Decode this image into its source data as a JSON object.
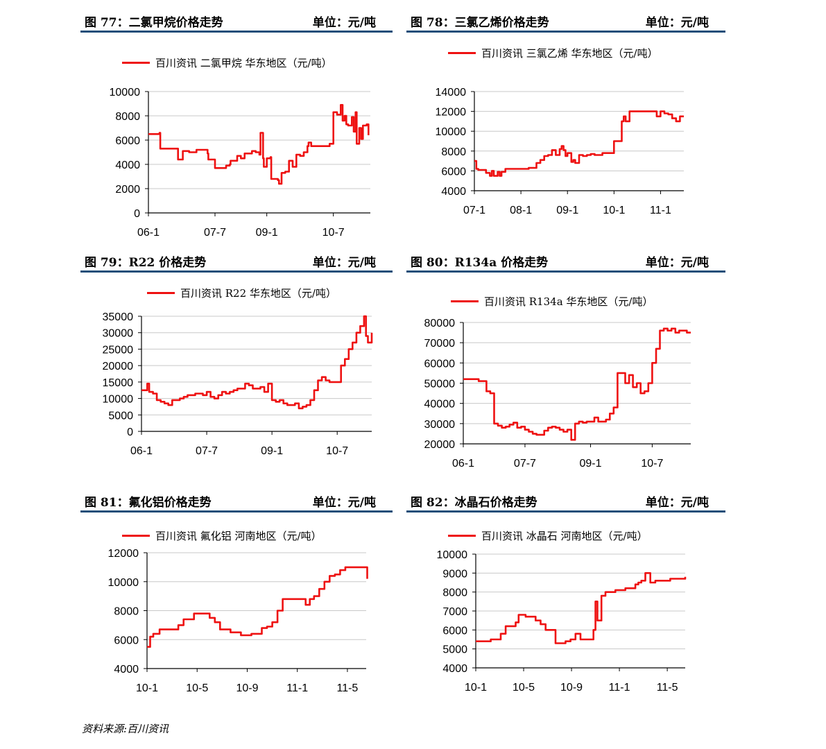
{
  "source_note": "资料来源:百川资讯",
  "chart_data": [
    {
      "id": "fig77",
      "figure_title": "图 77：二氯甲烷价格走势",
      "unit": "单位：元/吨",
      "type": "line",
      "legend": "百川资讯 二氯甲烷 华东地区（元/吨）",
      "color": "#ee1111",
      "ylim": [
        0,
        10000
      ],
      "yticks": [
        0,
        2000,
        4000,
        6000,
        8000,
        10000
      ],
      "xlim": [
        0,
        60
      ],
      "xticks": [
        {
          "x": 0,
          "label": "06-1"
        },
        {
          "x": 18,
          "label": "07-7"
        },
        {
          "x": 32,
          "label": "09-1"
        },
        {
          "x": 50,
          "label": "10-7"
        }
      ],
      "series": [
        {
          "x": [
            0,
            1,
            3,
            3.2,
            5,
            8,
            9,
            9.3,
            11,
            13,
            15,
            16,
            16.2,
            18,
            20,
            21,
            22,
            22.2,
            24,
            25,
            26,
            28,
            29,
            30,
            30.3,
            31,
            31.2,
            32,
            33,
            33.2,
            35,
            35.3,
            36,
            37,
            38,
            39,
            40,
            41,
            42,
            43,
            43.3,
            44,
            45,
            46,
            48,
            49,
            50,
            51,
            52,
            52.5,
            53,
            53.5,
            54,
            55,
            55.5,
            56,
            56.3,
            57,
            57.5,
            58,
            59,
            59.5
          ],
          "y": [
            6500,
            6500,
            6600,
            5300,
            5300,
            4400,
            4400,
            5100,
            5000,
            5200,
            5200,
            4900,
            4400,
            3700,
            3700,
            3900,
            4000,
            4300,
            4700,
            4500,
            4900,
            5100,
            5000,
            4800,
            6600,
            4500,
            3800,
            4500,
            4600,
            2800,
            2700,
            2400,
            3300,
            3400,
            4300,
            3800,
            4800,
            4700,
            5000,
            5500,
            5800,
            5500,
            5500,
            5500,
            5500,
            5700,
            8300,
            8100,
            8900,
            7600,
            8000,
            7300,
            7200,
            7900,
            6700,
            8300,
            5700,
            7000,
            6100,
            7200,
            7300,
            6400
          ]
        }
      ]
    },
    {
      "id": "fig78",
      "figure_title": "图 78：三氯乙烯价格走势",
      "unit": "单位：元/吨",
      "type": "line",
      "legend": "百川资讯 三氯乙烯 华东地区（元/吨）",
      "color": "#ee1111",
      "ylim": [
        4000,
        14000
      ],
      "yticks": [
        4000,
        6000,
        8000,
        10000,
        12000,
        14000
      ],
      "xlim": [
        0,
        54
      ],
      "xticks": [
        {
          "x": 0,
          "label": "07-1"
        },
        {
          "x": 12,
          "label": "08-1"
        },
        {
          "x": 24,
          "label": "09-1"
        },
        {
          "x": 36,
          "label": "10-1"
        },
        {
          "x": 48,
          "label": "11-1"
        }
      ],
      "series": [
        {
          "x": [
            0,
            0.5,
            1,
            3,
            4,
            4.5,
            5,
            6,
            6.5,
            7,
            8,
            9,
            10,
            12,
            14,
            16,
            17,
            18,
            19,
            20,
            21,
            22,
            22.5,
            23,
            23.5,
            24,
            25,
            25.5,
            26,
            27,
            28,
            29,
            30,
            31,
            33,
            35,
            36,
            37,
            38,
            38.5,
            39,
            40,
            41,
            42,
            43,
            44,
            45,
            46,
            47,
            48,
            49,
            50,
            51,
            52,
            53,
            54
          ],
          "y": [
            7000,
            6200,
            6100,
            5800,
            5500,
            6000,
            5500,
            5900,
            5500,
            5900,
            6200,
            6200,
            6200,
            6200,
            6300,
            6800,
            7100,
            7500,
            7600,
            8100,
            7600,
            8200,
            8500,
            8100,
            7500,
            7800,
            6900,
            7100,
            6800,
            7600,
            7500,
            7600,
            7700,
            7600,
            7800,
            7800,
            9000,
            9000,
            11000,
            11500,
            11000,
            12000,
            12000,
            12000,
            12000,
            12000,
            12000,
            12000,
            11500,
            12000,
            11800,
            11700,
            11300,
            11000,
            11500,
            11500
          ]
        }
      ]
    },
    {
      "id": "fig79",
      "figure_title": "图 79：R22 价格走势",
      "unit": "单位：元/吨",
      "type": "line",
      "legend": "百川资讯 R22 华东地区（元/吨）",
      "color": "#ee1111",
      "ylim": [
        0,
        35000
      ],
      "yticks": [
        0,
        5000,
        10000,
        15000,
        20000,
        25000,
        30000,
        35000
      ],
      "xlim": [
        0,
        60
      ],
      "xticks": [
        {
          "x": 0,
          "label": "06-1"
        },
        {
          "x": 17,
          "label": "07-7"
        },
        {
          "x": 34,
          "label": "09-1"
        },
        {
          "x": 51,
          "label": "10-7"
        }
      ],
      "series": [
        {
          "x": [
            0,
            1,
            1.5,
            2,
            3,
            4,
            5,
            6,
            7,
            8,
            9,
            10,
            11,
            12,
            13,
            14,
            15,
            16,
            17,
            18,
            19,
            20,
            21,
            22,
            23,
            24,
            25,
            26,
            27,
            28,
            29,
            30,
            31,
            32,
            33,
            34,
            35,
            36,
            37,
            38,
            39,
            40,
            41,
            42,
            43,
            44,
            45,
            46,
            47,
            48,
            49,
            50,
            51,
            52,
            53,
            54,
            55,
            56,
            57,
            58,
            58.5,
            59,
            60
          ],
          "y": [
            12500,
            12500,
            14500,
            12000,
            11500,
            9500,
            9000,
            8500,
            8000,
            9500,
            9500,
            10000,
            10500,
            11000,
            11000,
            11500,
            11500,
            11000,
            12000,
            10500,
            10000,
            11000,
            12000,
            11500,
            12000,
            12500,
            13000,
            13000,
            14500,
            14000,
            13000,
            13000,
            13500,
            12000,
            14500,
            9500,
            9000,
            9500,
            8500,
            8000,
            8000,
            8500,
            7000,
            7500,
            8000,
            9500,
            12500,
            15500,
            16500,
            15500,
            15000,
            15000,
            15000,
            20000,
            22000,
            25000,
            27000,
            30000,
            32000,
            35000,
            29000,
            27000,
            30000
          ]
        }
      ]
    },
    {
      "id": "fig80",
      "figure_title": "图 80：R134a 价格走势",
      "unit": "单位：元/吨",
      "type": "line",
      "legend": "百川资讯 R134a 华东地区（元/吨）",
      "color": "#ee1111",
      "ylim": [
        20000,
        80000
      ],
      "yticks": [
        20000,
        30000,
        40000,
        50000,
        60000,
        70000,
        80000
      ],
      "xlim": [
        0,
        59
      ],
      "xticks": [
        {
          "x": 0,
          "label": "06-1"
        },
        {
          "x": 16,
          "label": "07-7"
        },
        {
          "x": 33,
          "label": "09-1"
        },
        {
          "x": 49,
          "label": "10-7"
        }
      ],
      "series": [
        {
          "x": [
            0,
            2,
            4,
            6,
            7,
            8,
            9,
            10,
            11,
            12,
            13,
            14,
            15,
            16,
            17,
            18,
            19,
            20,
            21,
            22,
            23,
            24,
            25,
            26,
            27,
            28,
            29,
            30,
            31,
            32,
            33,
            34,
            35,
            36,
            37,
            38,
            39,
            40,
            41,
            42,
            43,
            44,
            45,
            46,
            47,
            48,
            49,
            50,
            51,
            52,
            53,
            54,
            55,
            56,
            57,
            58,
            59
          ],
          "y": [
            52000,
            52000,
            51000,
            46000,
            45000,
            30000,
            29000,
            28000,
            28500,
            29500,
            30500,
            28000,
            28500,
            27000,
            26000,
            25000,
            24500,
            24500,
            26500,
            28000,
            28500,
            28000,
            27000,
            26000,
            27000,
            22000,
            30000,
            31000,
            30500,
            31000,
            31000,
            33000,
            31000,
            31000,
            32000,
            35000,
            38000,
            55000,
            55000,
            50000,
            54000,
            48000,
            50000,
            45000,
            46000,
            50000,
            60000,
            67000,
            76000,
            77000,
            76000,
            77000,
            75000,
            76000,
            76000,
            75000,
            75000
          ]
        }
      ]
    },
    {
      "id": "fig81",
      "figure_title": "图 81：氟化铝价格走势",
      "unit": "单位：元/吨",
      "type": "line",
      "legend": "百川资讯 氟化铝 河南地区（元/吨）",
      "color": "#ee1111",
      "ylim": [
        4000,
        12000
      ],
      "yticks": [
        4000,
        6000,
        8000,
        10000,
        12000
      ],
      "xlim": [
        0,
        21
      ],
      "xticks": [
        {
          "x": 0,
          "label": "10-1"
        },
        {
          "x": 4.8,
          "label": "10-5"
        },
        {
          "x": 9.6,
          "label": "10-9"
        },
        {
          "x": 14.4,
          "label": "11-1"
        },
        {
          "x": 19.2,
          "label": "11-5"
        }
      ],
      "series": [
        {
          "x": [
            0,
            0.3,
            0.6,
            1.2,
            2,
            3,
            3.5,
            4.5,
            5,
            6,
            6.5,
            7,
            8,
            9,
            10,
            11,
            11.5,
            12,
            12.5,
            13,
            14,
            15,
            15.2,
            15.6,
            16,
            16.5,
            17,
            17.5,
            18,
            18.5,
            19,
            20,
            20.5,
            21,
            21.1
          ],
          "y": [
            5500,
            6200,
            6400,
            6700,
            6700,
            7000,
            7400,
            7800,
            7800,
            7500,
            7200,
            6700,
            6500,
            6300,
            6400,
            6800,
            6900,
            7200,
            8000,
            8800,
            8800,
            8800,
            8400,
            8800,
            9000,
            9500,
            10000,
            10400,
            10500,
            10800,
            11000,
            11000,
            11000,
            11000,
            10200
          ]
        }
      ]
    },
    {
      "id": "fig82",
      "figure_title": "图 82：冰晶石价格走势",
      "unit": "单位：元/吨",
      "type": "line",
      "legend": "百川资讯 冰晶石 河南地区（元/吨）",
      "color": "#ee1111",
      "ylim": [
        4000,
        10000
      ],
      "yticks": [
        4000,
        5000,
        6000,
        7000,
        8000,
        9000,
        10000
      ],
      "xlim": [
        0,
        21
      ],
      "xticks": [
        {
          "x": 0,
          "label": "10-1"
        },
        {
          "x": 4.8,
          "label": "10-5"
        },
        {
          "x": 9.6,
          "label": "10-9"
        },
        {
          "x": 14.4,
          "label": "11-1"
        },
        {
          "x": 19.2,
          "label": "11-5"
        }
      ],
      "series": [
        {
          "x": [
            0,
            1,
            1.5,
            2.5,
            3,
            4,
            4.3,
            5,
            6,
            6.5,
            7,
            7.5,
            8,
            9,
            9.5,
            10,
            10.5,
            11,
            11.8,
            12,
            12.2,
            12.6,
            13,
            14,
            15,
            16,
            16.3,
            16.6,
            17,
            17.5,
            18,
            19,
            19.5,
            20,
            21
          ],
          "y": [
            5400,
            5400,
            5500,
            5800,
            6200,
            6400,
            6800,
            6700,
            6500,
            6300,
            6000,
            6000,
            5300,
            5400,
            5500,
            5800,
            5500,
            5500,
            6000,
            7500,
            6500,
            7800,
            8000,
            8100,
            8200,
            8400,
            8500,
            8600,
            9000,
            8500,
            8600,
            8600,
            8700,
            8700,
            8800
          ]
        }
      ]
    }
  ]
}
